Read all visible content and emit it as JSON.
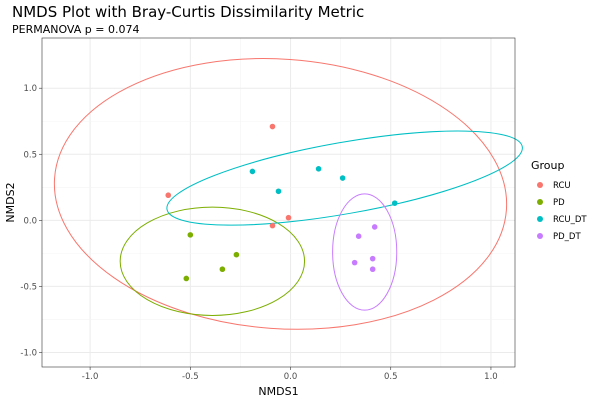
{
  "chart_data": {
    "type": "scatter",
    "title": "NMDS Plot with Bray-Curtis Dissimilarity Metric",
    "subtitle": "PERMANOVA p = 0.074",
    "xlabel": "NMDS1",
    "ylabel": "NMDS2",
    "xlim": [
      -1.24,
      1.12
    ],
    "ylim": [
      -1.11,
      1.38
    ],
    "xticks": [
      -1.0,
      -0.5,
      0.0,
      0.5,
      1.0
    ],
    "xtick_labels": [
      "-1.0",
      "-0.5",
      "0.0",
      "0.5",
      "1.0"
    ],
    "yticks": [
      -1.0,
      -0.5,
      0.0,
      0.5,
      1.0
    ],
    "ytick_labels": [
      "-1.0",
      "-0.5",
      "0.0",
      "0.5",
      "1.0"
    ],
    "grid": true,
    "legend": {
      "title": "Group",
      "position": "right"
    },
    "series": [
      {
        "name": "RCU",
        "color": "#F8766D",
        "points": [
          [
            -0.09,
            0.71
          ],
          [
            -0.61,
            0.19
          ],
          [
            -0.09,
            -0.04
          ],
          [
            -0.01,
            0.02
          ]
        ],
        "ellipse": {
          "cx": -0.05,
          "cy": 0.2,
          "rx": 1.13,
          "ry": 1.02,
          "angle": 4
        }
      },
      {
        "name": "PD",
        "color": "#7CAE00",
        "points": [
          [
            -0.5,
            -0.11
          ],
          [
            -0.27,
            -0.26
          ],
          [
            -0.34,
            -0.37
          ],
          [
            -0.52,
            -0.44
          ]
        ],
        "ellipse": {
          "cx": -0.39,
          "cy": -0.31,
          "rx": 0.46,
          "ry": 0.41,
          "angle": 0
        }
      },
      {
        "name": "RCU_DT",
        "color": "#00BFC4",
        "points": [
          [
            -0.19,
            0.37
          ],
          [
            -0.06,
            0.22
          ],
          [
            0.14,
            0.39
          ],
          [
            0.26,
            0.32
          ],
          [
            0.52,
            0.13
          ]
        ],
        "ellipse": {
          "cx": 0.27,
          "cy": 0.32,
          "rx": 0.9,
          "ry": 0.27,
          "angle": -10
        }
      },
      {
        "name": "PD_DT",
        "color": "#C77CFF",
        "points": [
          [
            0.34,
            -0.12
          ],
          [
            0.42,
            -0.05
          ],
          [
            0.41,
            -0.29
          ],
          [
            0.41,
            -0.37
          ],
          [
            0.32,
            -0.32
          ]
        ],
        "ellipse": {
          "cx": 0.37,
          "cy": -0.24,
          "rx": 0.16,
          "ry": 0.44,
          "angle": 0
        }
      }
    ]
  }
}
